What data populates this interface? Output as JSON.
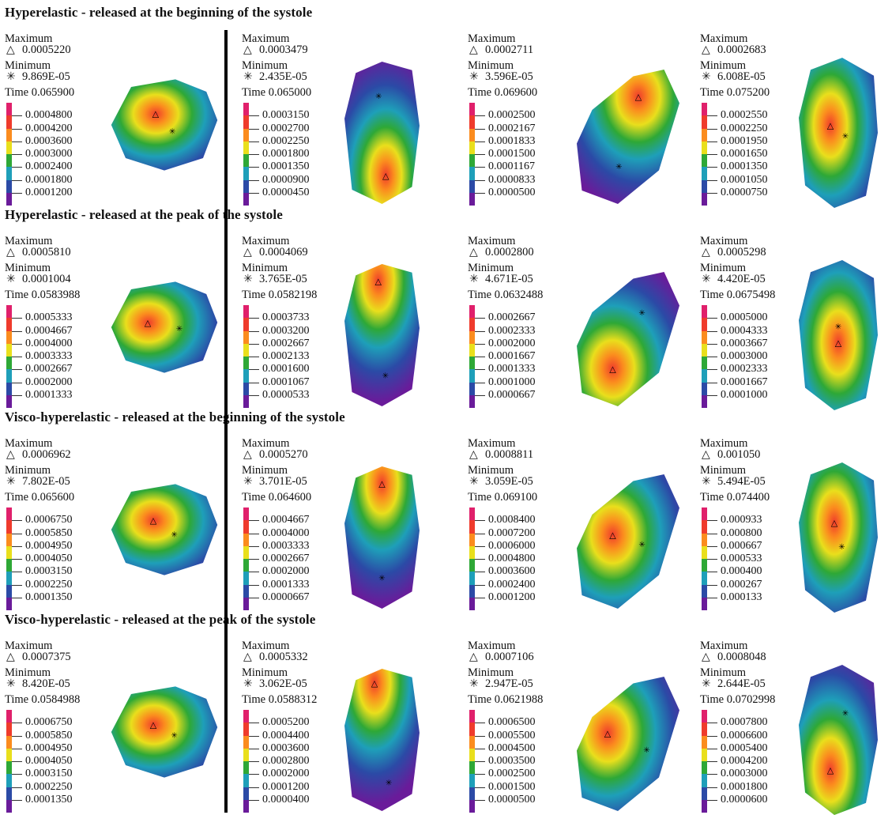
{
  "labels": {
    "maximum": "Maximum",
    "minimum": "Minimum",
    "time": "Time"
  },
  "icons": {
    "max_marker": "triangle-icon",
    "min_marker": "asterisk-icon"
  },
  "colorscale": [
    "#e0206b",
    "#ef3b2c",
    "#fb8c1e",
    "#e9df1c",
    "#2ea836",
    "#1e9fb9",
    "#2b4aa6",
    "#6a1b9a"
  ],
  "rows": [
    {
      "title": "Hyperelastic - released at the beginning of the systole",
      "panels": [
        {
          "max": "0.0005220",
          "min": "9.869E-05",
          "time": "Time 0.065900",
          "ticks": [
            "0.0004800",
            "0.0004200",
            "0.0003600",
            "0.0003000",
            "0.0002400",
            "0.0001800",
            "0.0001200"
          ]
        },
        {
          "max": "0.0003479",
          "min": "2.435E-05",
          "time": "Time 0.065000",
          "ticks": [
            "0.0003150",
            "0.0002700",
            "0.0002250",
            "0.0001800",
            "0.0001350",
            "0.0000900",
            "0.0000450"
          ]
        },
        {
          "max": "0.0002711",
          "min": "3.596E-05",
          "time": "Time 0.069600",
          "ticks": [
            "0.0002500",
            "0.0002167",
            "0.0001833",
            "0.0001500",
            "0.0001167",
            "0.0000833",
            "0.0000500"
          ]
        },
        {
          "max": "0.0002683",
          "min": "6.008E-05",
          "time": "Time 0.075200",
          "ticks": [
            "0.0002550",
            "0.0002250",
            "0.0001950",
            "0.0001650",
            "0.0001350",
            "0.0001050",
            "0.0000750"
          ]
        }
      ]
    },
    {
      "title": "Hyperelastic - released at the peak of the systole",
      "panels": [
        {
          "max": "0.0005810",
          "min": "0.0001004",
          "time": "Time 0.0583988",
          "ticks": [
            "0.0005333",
            "0.0004667",
            "0.0004000",
            "0.0003333",
            "0.0002667",
            "0.0002000",
            "0.0001333"
          ]
        },
        {
          "max": "0.0004069",
          "min": "3.765E-05",
          "time": "Time 0.0582198",
          "ticks": [
            "0.0003733",
            "0.0003200",
            "0.0002667",
            "0.0002133",
            "0.0001600",
            "0.0001067",
            "0.0000533"
          ]
        },
        {
          "max": "0.0002800",
          "min": "4.671E-05",
          "time": "Time 0.0632488",
          "ticks": [
            "0.0002667",
            "0.0002333",
            "0.0002000",
            "0.0001667",
            "0.0001333",
            "0.0001000",
            "0.0000667"
          ]
        },
        {
          "max": "0.0005298",
          "min": "4.420E-05",
          "time": "Time 0.0675498",
          "ticks": [
            "0.0005000",
            "0.0004333",
            "0.0003667",
            "0.0003000",
            "0.0002333",
            "0.0001667",
            "0.0001000"
          ]
        }
      ]
    },
    {
      "title": "Visco-hyperelastic - released at the beginning of the systole",
      "panels": [
        {
          "max": "0.0006962",
          "min": "7.802E-05",
          "time": "Time 0.065600",
          "ticks": [
            "0.0006750",
            "0.0005850",
            "0.0004950",
            "0.0004050",
            "0.0003150",
            "0.0002250",
            "0.0001350"
          ]
        },
        {
          "max": "0.0005270",
          "min": "3.701E-05",
          "time": "Time 0.064600",
          "ticks": [
            "0.0004667",
            "0.0004000",
            "0.0003333",
            "0.0002667",
            "0.0002000",
            "0.0001333",
            "0.0000667"
          ]
        },
        {
          "max": "0.0008811",
          "min": "3.059E-05",
          "time": "Time 0.069100",
          "ticks": [
            "0.0008400",
            "0.0007200",
            "0.0006000",
            "0.0004800",
            "0.0003600",
            "0.0002400",
            "0.0001200"
          ]
        },
        {
          "max": "0.001050",
          "min": "5.494E-05",
          "time": "Time 0.074400",
          "ticks": [
            "0.000933",
            "0.000800",
            "0.000667",
            "0.000533",
            "0.000400",
            "0.000267",
            "0.000133"
          ]
        }
      ]
    },
    {
      "title": "Visco-hyperelastic - released at the peak of the systole",
      "panels": [
        {
          "max": "0.0007375",
          "min": "8.420E-05",
          "time": "Time 0.0584988",
          "ticks": [
            "0.0006750",
            "0.0005850",
            "0.0004950",
            "0.0004050",
            "0.0003150",
            "0.0002250",
            "0.0001350"
          ]
        },
        {
          "max": "0.0005332",
          "min": "3.062E-05",
          "time": "Time 0.0588312",
          "ticks": [
            "0.0005200",
            "0.0004400",
            "0.0003600",
            "0.0002800",
            "0.0002000",
            "0.0001200",
            "0.0000400"
          ]
        },
        {
          "max": "0.0007106",
          "min": "2.947E-05",
          "time": "Time 0.0621988",
          "ticks": [
            "0.0006500",
            "0.0005500",
            "0.0004500",
            "0.0003500",
            "0.0002500",
            "0.0001500",
            "0.0000500"
          ]
        },
        {
          "max": "0.0008048",
          "min": "2.644E-05",
          "time": "Time 0.0702998",
          "ticks": [
            "0.0007800",
            "0.0006600",
            "0.0005400",
            "0.0004200",
            "0.0003000",
            "0.0001800",
            "0.0000600"
          ]
        }
      ]
    }
  ]
}
